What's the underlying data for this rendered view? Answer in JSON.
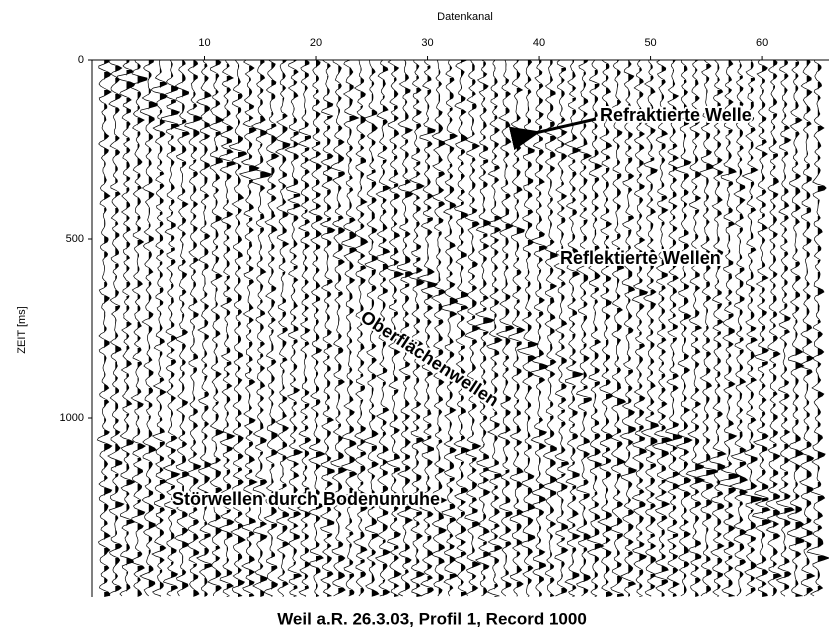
{
  "chart_data": {
    "type": "seismogram",
    "x_label": "Datenkanal",
    "y_label": "ZEIT [ms]",
    "caption": "Weil a.R. 26.3.03, Profil 1, Record 1000",
    "xlim": [
      0,
      66
    ],
    "xticks": [
      10,
      20,
      30,
      40,
      50,
      60
    ],
    "ylim": [
      0,
      1500
    ],
    "yticks": [
      0,
      500,
      1000
    ],
    "annotations": [
      "Refraktierte Welle",
      "Reflektierte Wellen",
      "Oberflächenwellen",
      "Störwellen durch Bodenunruhe"
    ]
  }
}
